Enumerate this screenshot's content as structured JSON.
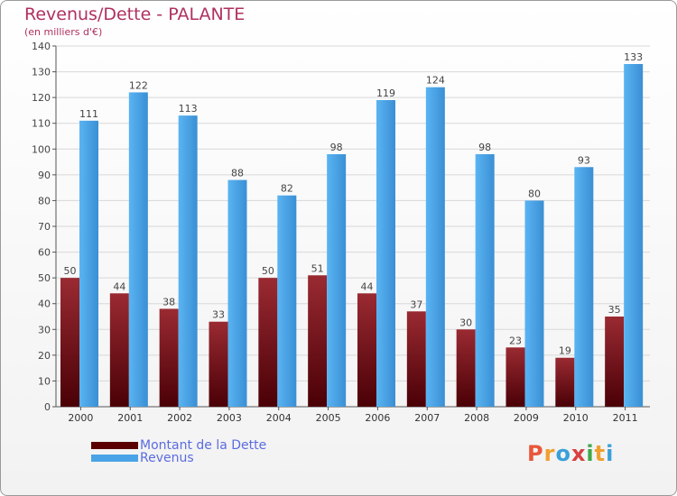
{
  "chart_data": {
    "type": "bar",
    "title": "Revenus/Dette - PALANTE",
    "subtitle": "(en milliers d'€)",
    "categories": [
      "2000",
      "2001",
      "2002",
      "2003",
      "2004",
      "2005",
      "2006",
      "2007",
      "2008",
      "2009",
      "2010",
      "2011"
    ],
    "series": [
      {
        "name": "Montant de la Dette",
        "color": "#7a1018",
        "values": [
          50,
          44,
          38,
          33,
          50,
          51,
          44,
          37,
          30,
          23,
          19,
          35
        ]
      },
      {
        "name": "Revenus",
        "color": "#4aa3e6",
        "values": [
          111,
          122,
          113,
          88,
          82,
          98,
          119,
          124,
          98,
          80,
          93,
          133
        ]
      }
    ],
    "ylim": [
      0,
      140
    ],
    "yticks": [
      0,
      10,
      20,
      30,
      40,
      50,
      60,
      70,
      80,
      90,
      100,
      110,
      120,
      130,
      140
    ],
    "grid": true,
    "legend_position": "bottom-left"
  },
  "logo": {
    "text": "Proxiti",
    "colors": [
      "#e8573a",
      "#f0a030",
      "#3aa0d8",
      "#d84040",
      "#40a848",
      "#f0a030",
      "#3aa0d8"
    ]
  }
}
